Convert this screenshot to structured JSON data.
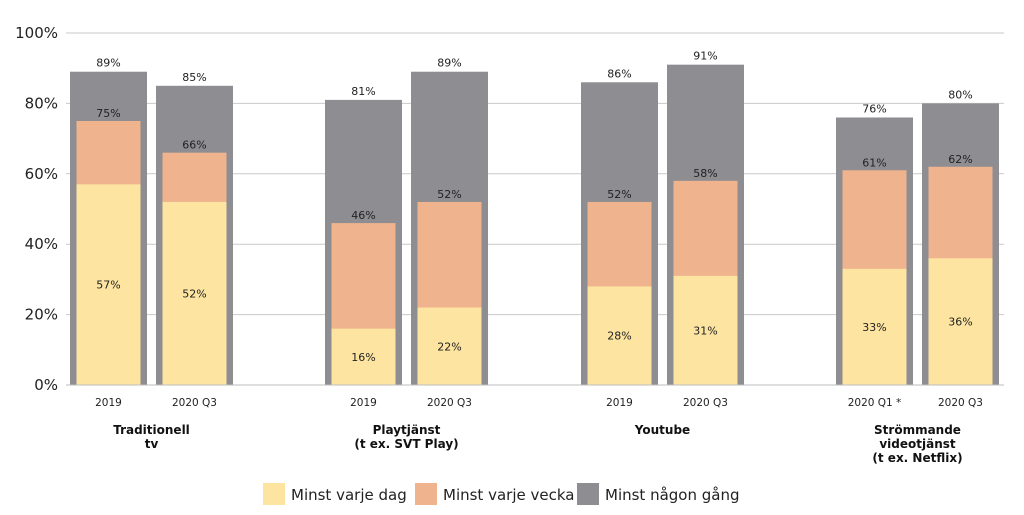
{
  "chart_data": {
    "type": "bar",
    "y_ticks": [
      "100%",
      "80%",
      "60%",
      "40%",
      "20%",
      "0%"
    ],
    "ylim": [
      0,
      100
    ],
    "grid": true,
    "legend_position": "bottom",
    "groups": [
      {
        "label_lines": [
          "Traditionell",
          "tv"
        ],
        "bars": [
          {
            "category": "2019",
            "values": [
              57,
              75,
              89
            ],
            "labels": [
              "57%",
              "75%",
              "89%"
            ]
          },
          {
            "category": "2020 Q3",
            "values": [
              52,
              66,
              85
            ],
            "labels": [
              "52%",
              "66%",
              "85%"
            ]
          }
        ]
      },
      {
        "label_lines": [
          "Playtjänst",
          "(t ex. SVT Play)"
        ],
        "bars": [
          {
            "category": "2019",
            "values": [
              16,
              46,
              81
            ],
            "labels": [
              "16%",
              "46%",
              "81%"
            ]
          },
          {
            "category": "2020 Q3",
            "values": [
              22,
              52,
              89
            ],
            "labels": [
              "22%",
              "52%",
              "89%"
            ]
          }
        ]
      },
      {
        "label_lines": [
          "Youtube"
        ],
        "bars": [
          {
            "category": "2019",
            "values": [
              28,
              52,
              86
            ],
            "labels": [
              "28%",
              "52%",
              "86%"
            ]
          },
          {
            "category": "2020 Q3",
            "values": [
              31,
              58,
              91
            ],
            "labels": [
              "31%",
              "58%",
              "91%"
            ]
          }
        ]
      },
      {
        "label_lines": [
          "Strömmande",
          "videotjänst",
          "(t ex. Netflix)"
        ],
        "bars": [
          {
            "category": "2020 Q1 *",
            "values": [
              33,
              61,
              76
            ],
            "labels": [
              "33%",
              "61%",
              "76%"
            ]
          },
          {
            "category": "2020 Q3",
            "values": [
              36,
              62,
              80
            ],
            "labels": [
              "36%",
              "62%",
              "80%"
            ]
          }
        ]
      }
    ],
    "series": [
      {
        "name": "Minst varje dag",
        "color": "#fde5a1"
      },
      {
        "name": "Minst varje vecka",
        "color": "#efb48d"
      },
      {
        "name": "Minst någon gång",
        "color": "#8e8d92"
      }
    ]
  }
}
